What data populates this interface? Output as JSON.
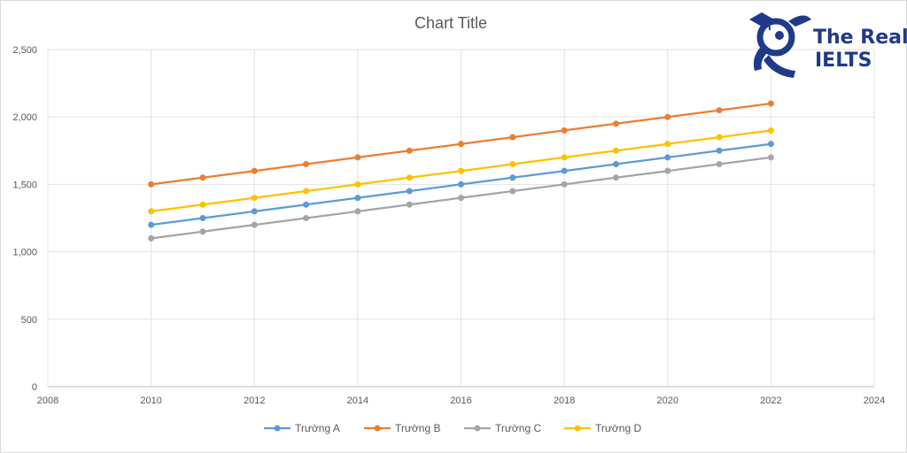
{
  "logo": {
    "line1": "The Real",
    "line2": "IELTS"
  },
  "chart_data": {
    "type": "line",
    "title": "Chart Title",
    "xlabel": "",
    "ylabel": "",
    "xlim": [
      2008,
      2024
    ],
    "ylim": [
      0,
      2500
    ],
    "x_ticks": [
      2008,
      2010,
      2012,
      2014,
      2016,
      2018,
      2020,
      2022,
      2024
    ],
    "y_ticks": [
      0,
      500,
      1000,
      1500,
      2000,
      2500
    ],
    "y_tick_labels": [
      "0",
      "500",
      "1,000",
      "1,500",
      "2,000",
      "2,500"
    ],
    "grid": true,
    "legend_position": "bottom",
    "x": [
      2010,
      2011,
      2012,
      2013,
      2014,
      2015,
      2016,
      2017,
      2018,
      2019,
      2020,
      2021,
      2022
    ],
    "series": [
      {
        "name": "Trường A",
        "color": "#5b9bd5",
        "values": [
          1200,
          1250,
          1300,
          1350,
          1400,
          1450,
          1500,
          1550,
          1600,
          1650,
          1700,
          1750,
          1800
        ]
      },
      {
        "name": "Trường B",
        "color": "#ed7d31",
        "values": [
          1500,
          1550,
          1600,
          1650,
          1700,
          1750,
          1800,
          1850,
          1900,
          1950,
          2000,
          2050,
          2100
        ]
      },
      {
        "name": "Trường C",
        "color": "#a5a5a5",
        "values": [
          1100,
          1150,
          1200,
          1250,
          1300,
          1350,
          1400,
          1450,
          1500,
          1550,
          1600,
          1650,
          1700
        ]
      },
      {
        "name": "Trường D",
        "color": "#ffc000",
        "values": [
          1300,
          1350,
          1400,
          1450,
          1500,
          1550,
          1600,
          1650,
          1700,
          1750,
          1800,
          1850,
          1900
        ]
      }
    ]
  }
}
